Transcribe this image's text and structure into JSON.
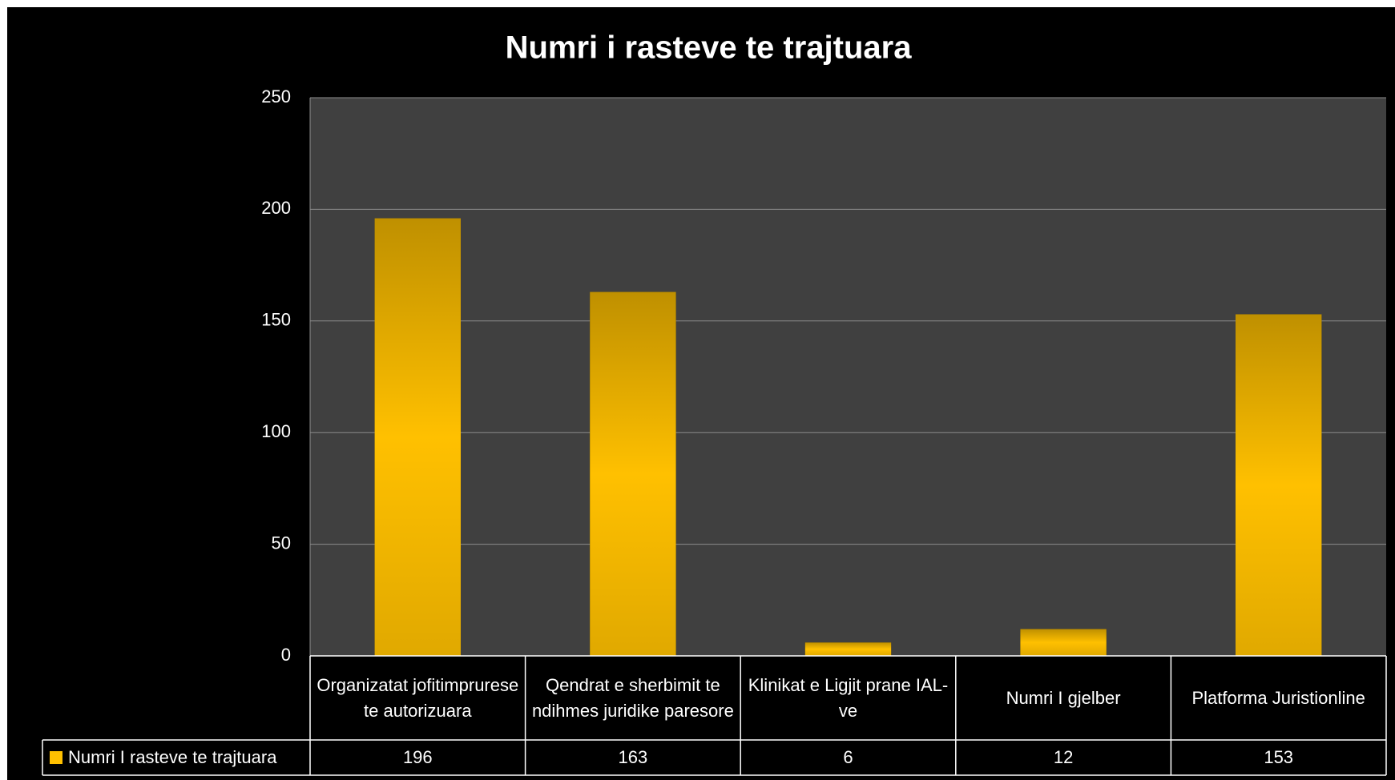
{
  "chart_data": {
    "type": "bar",
    "title": "Numri i rasteve te trajtuara",
    "categories": [
      "Organizatat jofitimprurese te autorizuara",
      "Qendrat e sherbimit te ndihmes juridike paresore",
      "Klinikat e Ligjit prane IAL-ve",
      "Numri I gjelber",
      "Platforma Juristionline"
    ],
    "series": [
      {
        "name": "Numri I rasteve te trajtuara",
        "color": "#ffc000",
        "values": [
          196,
          163,
          6,
          12,
          153
        ]
      }
    ],
    "ylim": [
      0,
      250
    ],
    "yticks": [
      0,
      50,
      100,
      150,
      200,
      250
    ],
    "grid": true,
    "legend": "bottom-left"
  }
}
